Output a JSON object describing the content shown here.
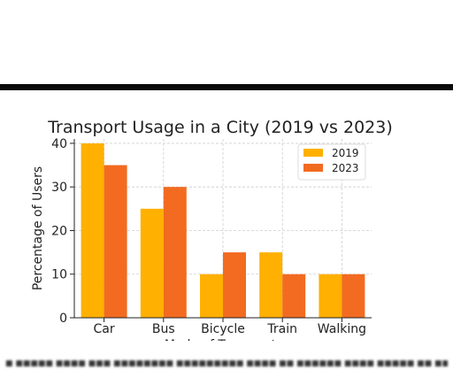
{
  "chart_data": {
    "type": "bar",
    "title": "Transport Usage in a City (2019 vs 2023)",
    "xlabel": "Mode of Transport",
    "ylabel": "Percentage of Users",
    "categories": [
      "Car",
      "Bus",
      "Bicycle",
      "Train",
      "Walking"
    ],
    "series": [
      {
        "name": "2019",
        "values": [
          40,
          25,
          10,
          15,
          10
        ],
        "color": "#FFB000"
      },
      {
        "name": "2023",
        "values": [
          35,
          30,
          15,
          10,
          10
        ],
        "color": "#F26B21"
      }
    ],
    "ylim": [
      0,
      41
    ],
    "yticks": [
      0,
      10,
      20,
      30,
      40
    ],
    "grid": true,
    "legend_position": "top-right"
  }
}
